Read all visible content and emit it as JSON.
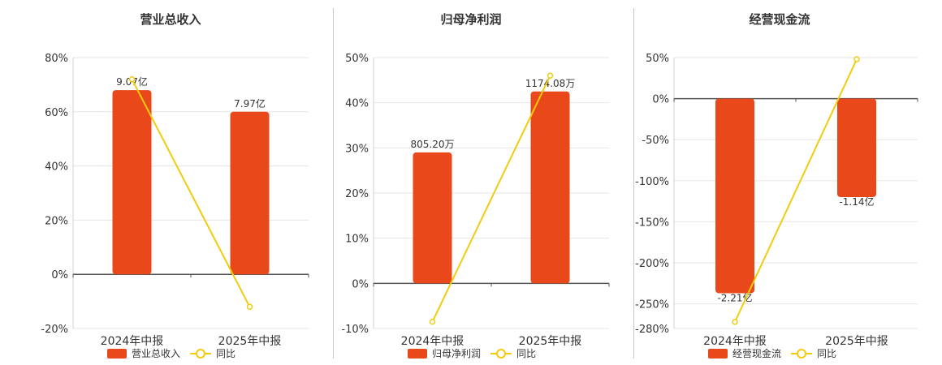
{
  "colors": {
    "bar": "#e8481a",
    "line": "#f2cc0c",
    "axis": "#555555",
    "grid": "#e6e6e6",
    "text": "#333333"
  },
  "chart_data": [
    {
      "type": "bar",
      "title": "营业总收入",
      "categories": [
        "2024年中报",
        "2025年中报"
      ],
      "y_ticks": [
        "80%",
        "60%",
        "40%",
        "20%",
        "0%",
        "-20%"
      ],
      "ylim": [
        -20,
        80
      ],
      "series": [
        {
          "name": "营业总收入",
          "kind": "bar",
          "values": [
            68,
            60
          ],
          "labels": [
            "9.07亿",
            "7.97亿"
          ]
        },
        {
          "name": "同比",
          "kind": "line",
          "values": [
            72,
            -12
          ]
        }
      ]
    },
    {
      "type": "bar",
      "title": "归母净利润",
      "categories": [
        "2024年中报",
        "2025年中报"
      ],
      "y_ticks": [
        "50%",
        "40%",
        "30%",
        "20%",
        "10%",
        "0%",
        "-10%"
      ],
      "ylim": [
        -10,
        50
      ],
      "series": [
        {
          "name": "归母净利润",
          "kind": "bar",
          "values": [
            29,
            42.5
          ],
          "labels": [
            "805.20万",
            "1174.08万"
          ]
        },
        {
          "name": "同比",
          "kind": "line",
          "values": [
            -8.5,
            46
          ]
        }
      ]
    },
    {
      "type": "bar",
      "title": "经营现金流",
      "categories": [
        "2024年中报",
        "2025年中报"
      ],
      "y_ticks": [
        "50%",
        "0%",
        "-50%",
        "-100%",
        "-150%",
        "-200%",
        "-250%",
        "-280%"
      ],
      "ylim": [
        -280,
        50
      ],
      "series": [
        {
          "name": "经营现金流",
          "kind": "bar",
          "values": [
            -237,
            -120
          ],
          "labels": [
            "-2.21亿",
            "-1.14亿"
          ]
        },
        {
          "name": "同比",
          "kind": "line",
          "values": [
            -272,
            48
          ]
        }
      ]
    }
  ]
}
